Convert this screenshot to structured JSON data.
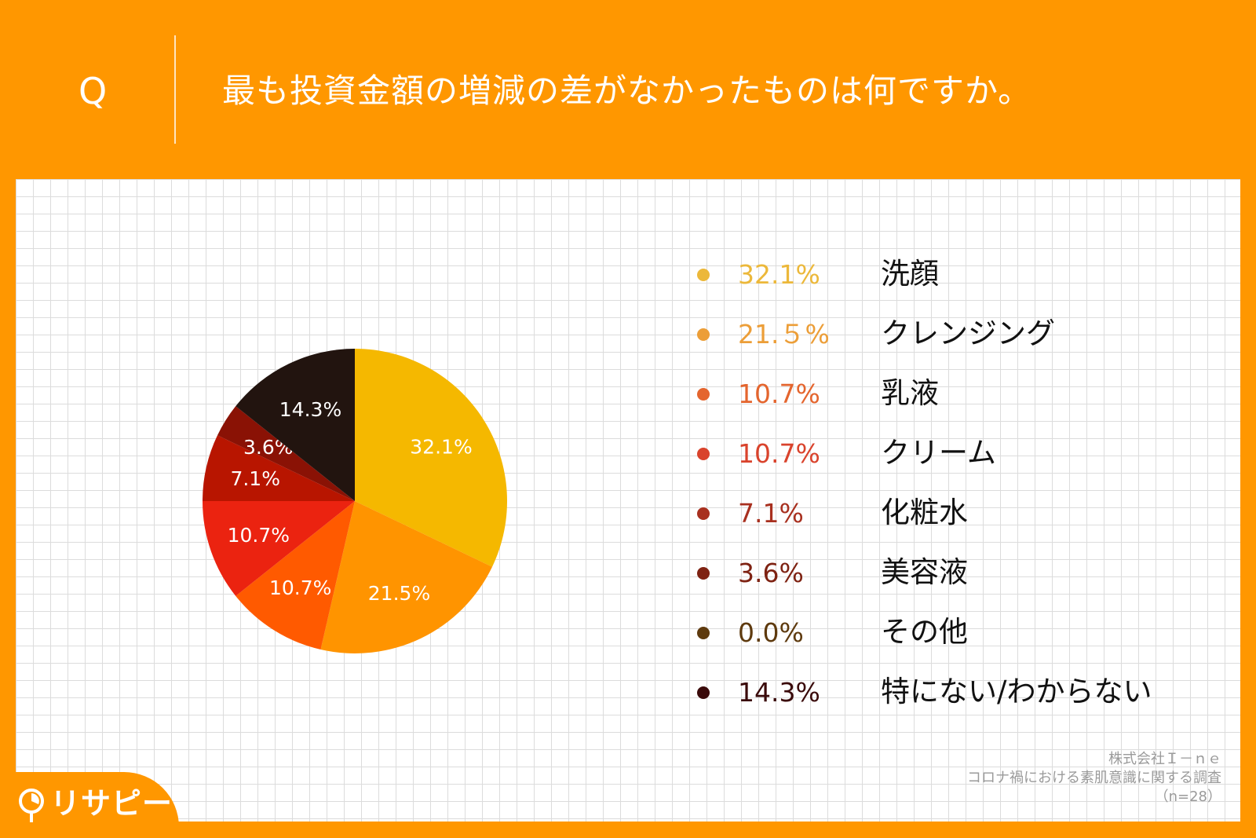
{
  "header": {
    "q_mark": "Q",
    "question": "最も投資金額の増減の差がなかったものは何ですか。"
  },
  "chart_data": {
    "type": "pie",
    "title": "最も投資金額の増減の差がなかったものは何ですか。",
    "slices": [
      {
        "label": "洗顔",
        "value": 32.1,
        "pie_label": "32.1%",
        "legend_pct": "32.1%",
        "color": "#F5B800",
        "legend_color": "#ECB83A"
      },
      {
        "label": "クレンジング",
        "value": 21.5,
        "pie_label": "21.5%",
        "legend_pct": "21.５%",
        "color": "#FF9400",
        "legend_color": "#EC9E38"
      },
      {
        "label": "乳液",
        "value": 10.7,
        "pie_label": "10.7%",
        "legend_pct": "10.7%",
        "color": "#FF5A00",
        "legend_color": "#E4652E"
      },
      {
        "label": "クリーム",
        "value": 10.7,
        "pie_label": "10.7%",
        "legend_pct": "10.7%",
        "color": "#EB2310",
        "legend_color": "#D9432C"
      },
      {
        "label": "化粧水",
        "value": 7.1,
        "pie_label": "7.1%",
        "legend_pct": "7.1%",
        "color": "#B81500",
        "legend_color": "#A8301F"
      },
      {
        "label": "美容液",
        "value": 3.6,
        "pie_label": "3.6%",
        "legend_pct": "3.6%",
        "color": "#8A1205",
        "legend_color": "#7E2212"
      },
      {
        "label": "その他",
        "value": 0.0,
        "pie_label": "",
        "legend_pct": "0.0%",
        "color": "#6B3A0A",
        "legend_color": "#5E3A0E"
      },
      {
        "label": "特にない/わからない",
        "value": 14.3,
        "pie_label": "14.3%",
        "legend_pct": "14.3%",
        "color": "#22140F",
        "legend_color": "#3A0A0A"
      }
    ]
  },
  "source": {
    "company": "株式会社Ｉ－ｎｅ",
    "survey": "コロナ禍における素肌意識に関する調査",
    "sample": "（n=28）"
  },
  "logo": {
    "text": "リサピー",
    "icon": "pie-chart-pin-icon"
  }
}
